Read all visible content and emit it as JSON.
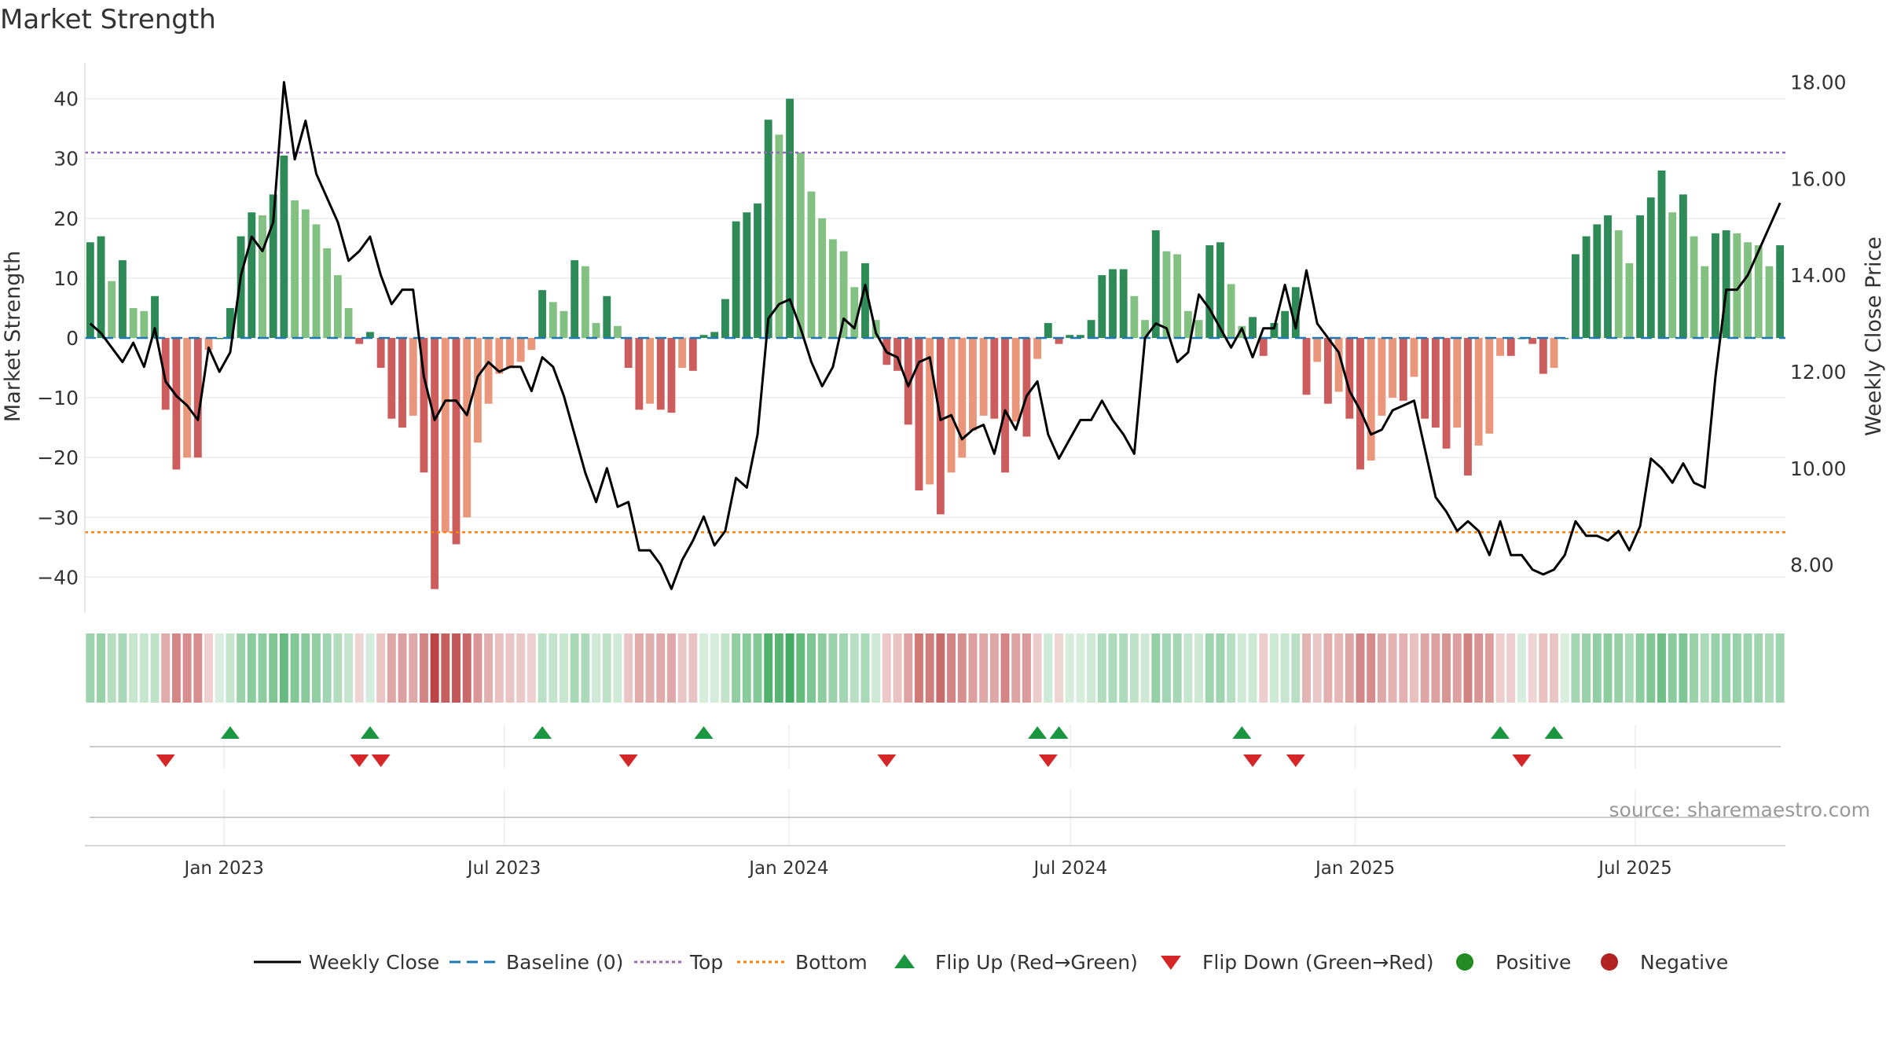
{
  "chart_data": {
    "type": "bar",
    "title": "Market Strength",
    "ylabel": "Market Strength",
    "y2label": "Weekly Close Price",
    "ylim": [
      -46,
      46
    ],
    "y2lim": [
      7.0,
      18.4
    ],
    "yticks": [
      40,
      30,
      20,
      10,
      0,
      -10,
      -20,
      -30,
      -40
    ],
    "ytick_labels": [
      "40",
      "30",
      "20",
      "10",
      "0",
      "−10",
      "−20",
      "−30",
      "−40"
    ],
    "y2ticks": [
      18,
      16,
      14,
      12,
      10,
      8
    ],
    "y2tick_labels": [
      "18.00",
      "16.00",
      "14.00",
      "12.00",
      "10.00",
      "8.00"
    ],
    "x_start": "2022-10-03",
    "x_end": "2025-10-06",
    "week_count": 158,
    "xticks": [
      "2023-01-01",
      "2023-07-01",
      "2024-01-01",
      "2024-07-01",
      "2025-01-01",
      "2025-07-01"
    ],
    "xtick_labels": [
      "Jan 2023",
      "Jul 2023",
      "Jan 2024",
      "Jul 2024",
      "Jan 2025",
      "Jul 2025"
    ],
    "top_threshold": 31,
    "bottom_threshold": -32.5,
    "strength_anchors": [
      [
        0,
        16
      ],
      [
        1,
        17
      ],
      [
        2,
        9.5
      ],
      [
        3,
        13
      ],
      [
        4,
        5
      ],
      [
        5,
        4.5
      ],
      [
        6,
        7
      ],
      [
        7,
        -12
      ],
      [
        8,
        -22
      ],
      [
        9,
        -20
      ],
      [
        10,
        -20
      ],
      [
        11,
        -2
      ],
      [
        12,
        0
      ],
      [
        13,
        5
      ],
      [
        14,
        17
      ],
      [
        15,
        21
      ],
      [
        16,
        20.5
      ],
      [
        17,
        24
      ],
      [
        18,
        30.5
      ],
      [
        19,
        23
      ],
      [
        20,
        21.5
      ],
      [
        21,
        19
      ],
      [
        22,
        15
      ],
      [
        23,
        10.5
      ],
      [
        24,
        5
      ],
      [
        25,
        -1
      ],
      [
        26,
        1
      ],
      [
        27,
        -5
      ],
      [
        28,
        -13.5
      ],
      [
        29,
        -15
      ],
      [
        30,
        -13
      ],
      [
        31,
        -22.5
      ],
      [
        32,
        -42
      ],
      [
        33,
        -32.5
      ],
      [
        34,
        -34.5
      ],
      [
        35,
        -30
      ],
      [
        36,
        -17.5
      ],
      [
        37,
        -11
      ],
      [
        38,
        -6
      ],
      [
        39,
        -5
      ],
      [
        40,
        -4
      ],
      [
        41,
        -2
      ],
      [
        42,
        8
      ],
      [
        43,
        6
      ],
      [
        44,
        4.5
      ],
      [
        45,
        13
      ],
      [
        46,
        12
      ],
      [
        47,
        2.5
      ],
      [
        48,
        7
      ],
      [
        49,
        2
      ],
      [
        50,
        -5
      ],
      [
        51,
        -12
      ],
      [
        52,
        -11
      ],
      [
        53,
        -12
      ],
      [
        54,
        -12.5
      ],
      [
        55,
        -5
      ],
      [
        56,
        -5.5
      ],
      [
        57,
        0.5
      ],
      [
        58,
        1
      ],
      [
        59,
        6.5
      ],
      [
        60,
        19.5
      ],
      [
        61,
        21
      ],
      [
        62,
        22.5
      ],
      [
        63,
        36.5
      ],
      [
        64,
        34
      ],
      [
        65,
        40
      ],
      [
        66,
        31
      ],
      [
        67,
        24.5
      ],
      [
        68,
        20
      ],
      [
        69,
        16.5
      ],
      [
        70,
        14.5
      ],
      [
        71,
        8.5
      ],
      [
        72,
        12.5
      ],
      [
        73,
        3
      ],
      [
        74,
        -4.5
      ],
      [
        75,
        -5.5
      ],
      [
        76,
        -14.5
      ],
      [
        77,
        -25.5
      ],
      [
        78,
        -24.5
      ],
      [
        79,
        -29.5
      ],
      [
        80,
        -22.5
      ],
      [
        81,
        -20
      ],
      [
        82,
        -15.5
      ],
      [
        83,
        -13
      ],
      [
        84,
        -13.5
      ],
      [
        85,
        -22.5
      ],
      [
        86,
        -14
      ],
      [
        87,
        -16.5
      ],
      [
        88,
        -3.5
      ],
      [
        89,
        2.5
      ],
      [
        90,
        -1
      ],
      [
        91,
        0.5
      ],
      [
        92,
        0.5
      ],
      [
        93,
        3
      ],
      [
        94,
        10.5
      ],
      [
        95,
        11.5
      ],
      [
        96,
        11.5
      ],
      [
        97,
        7
      ],
      [
        98,
        3
      ],
      [
        99,
        18
      ],
      [
        100,
        14.5
      ],
      [
        101,
        14
      ],
      [
        102,
        4.5
      ],
      [
        103,
        3
      ],
      [
        104,
        15.5
      ],
      [
        105,
        16
      ],
      [
        106,
        9
      ],
      [
        107,
        2
      ],
      [
        108,
        3.5
      ],
      [
        109,
        -3
      ],
      [
        110,
        2.5
      ],
      [
        111,
        4.5
      ],
      [
        112,
        8.5
      ],
      [
        113,
        -9.5
      ],
      [
        114,
        -4
      ],
      [
        115,
        -11
      ],
      [
        116,
        -9
      ],
      [
        117,
        -13.5
      ],
      [
        118,
        -22
      ],
      [
        119,
        -20.5
      ],
      [
        120,
        -13
      ],
      [
        121,
        -10
      ],
      [
        122,
        -10.5
      ],
      [
        123,
        -6.5
      ],
      [
        124,
        -13.5
      ],
      [
        125,
        -15
      ],
      [
        126,
        -18.5
      ],
      [
        127,
        -15
      ],
      [
        128,
        -23
      ],
      [
        129,
        -18
      ],
      [
        130,
        -16
      ],
      [
        131,
        -3
      ],
      [
        132,
        -3
      ],
      [
        133,
        0
      ],
      [
        134,
        -1
      ],
      [
        135,
        -6
      ],
      [
        136,
        -5
      ],
      [
        137,
        0
      ],
      [
        138,
        14
      ],
      [
        139,
        17
      ],
      [
        140,
        19
      ],
      [
        141,
        20.5
      ],
      [
        142,
        18
      ],
      [
        143,
        12.5
      ],
      [
        144,
        20.5
      ],
      [
        145,
        23.5
      ],
      [
        146,
        28
      ],
      [
        147,
        21
      ],
      [
        148,
        24
      ],
      [
        149,
        17
      ],
      [
        150,
        12
      ],
      [
        151,
        17.5
      ],
      [
        152,
        18
      ],
      [
        153,
        17.5
      ],
      [
        154,
        16
      ],
      [
        155,
        15.5
      ],
      [
        156,
        12
      ],
      [
        157,
        15.5
      ]
    ],
    "price_anchors": [
      [
        0,
        13.0
      ],
      [
        1,
        12.8
      ],
      [
        2,
        12.5
      ],
      [
        3,
        12.2
      ],
      [
        4,
        12.6
      ],
      [
        5,
        12.1
      ],
      [
        6,
        12.9
      ],
      [
        7,
        11.8
      ],
      [
        8,
        11.5
      ],
      [
        9,
        11.3
      ],
      [
        10,
        11.0
      ],
      [
        11,
        12.5
      ],
      [
        12,
        12.0
      ],
      [
        13,
        12.4
      ],
      [
        14,
        14.0
      ],
      [
        15,
        14.8
      ],
      [
        16,
        14.5
      ],
      [
        17,
        15.1
      ],
      [
        18,
        18.0
      ],
      [
        19,
        16.4
      ],
      [
        20,
        17.2
      ],
      [
        21,
        16.1
      ],
      [
        22,
        15.6
      ],
      [
        23,
        15.1
      ],
      [
        24,
        14.3
      ],
      [
        25,
        14.5
      ],
      [
        26,
        14.8
      ],
      [
        27,
        14.0
      ],
      [
        28,
        13.4
      ],
      [
        29,
        13.7
      ],
      [
        30,
        13.7
      ],
      [
        31,
        11.9
      ],
      [
        32,
        11.0
      ],
      [
        33,
        11.4
      ],
      [
        34,
        11.4
      ],
      [
        35,
        11.1
      ],
      [
        36,
        11.9
      ],
      [
        37,
        12.2
      ],
      [
        38,
        12.0
      ],
      [
        39,
        12.1
      ],
      [
        40,
        12.1
      ],
      [
        41,
        11.6
      ],
      [
        42,
        12.3
      ],
      [
        43,
        12.1
      ],
      [
        44,
        11.5
      ],
      [
        45,
        10.7
      ],
      [
        46,
        9.9
      ],
      [
        47,
        9.3
      ],
      [
        48,
        10.0
      ],
      [
        49,
        9.2
      ],
      [
        50,
        9.3
      ],
      [
        51,
        8.3
      ],
      [
        52,
        8.3
      ],
      [
        53,
        8.0
      ],
      [
        54,
        7.5
      ],
      [
        55,
        8.1
      ],
      [
        56,
        8.5
      ],
      [
        57,
        9.0
      ],
      [
        58,
        8.4
      ],
      [
        59,
        8.7
      ],
      [
        60,
        9.8
      ],
      [
        61,
        9.6
      ],
      [
        62,
        10.7
      ],
      [
        63,
        13.1
      ],
      [
        64,
        13.4
      ],
      [
        65,
        13.5
      ],
      [
        66,
        12.9
      ],
      [
        67,
        12.2
      ],
      [
        68,
        11.7
      ],
      [
        69,
        12.1
      ],
      [
        70,
        13.1
      ],
      [
        71,
        12.9
      ],
      [
        72,
        13.8
      ],
      [
        73,
        12.8
      ],
      [
        74,
        12.4
      ],
      [
        75,
        12.3
      ],
      [
        76,
        11.7
      ],
      [
        77,
        12.2
      ],
      [
        78,
        12.3
      ],
      [
        79,
        11.0
      ],
      [
        80,
        11.1
      ],
      [
        81,
        10.6
      ],
      [
        82,
        10.8
      ],
      [
        83,
        10.9
      ],
      [
        84,
        10.3
      ],
      [
        85,
        11.2
      ],
      [
        86,
        10.8
      ],
      [
        87,
        11.5
      ],
      [
        88,
        11.8
      ],
      [
        89,
        10.7
      ],
      [
        90,
        10.2
      ],
      [
        91,
        10.6
      ],
      [
        92,
        11.0
      ],
      [
        93,
        11.0
      ],
      [
        94,
        11.4
      ],
      [
        95,
        11.0
      ],
      [
        96,
        10.7
      ],
      [
        97,
        10.3
      ],
      [
        98,
        12.7
      ],
      [
        99,
        13.0
      ],
      [
        100,
        12.9
      ],
      [
        101,
        12.2
      ],
      [
        102,
        12.4
      ],
      [
        103,
        13.6
      ],
      [
        104,
        13.3
      ],
      [
        105,
        12.9
      ],
      [
        106,
        12.5
      ],
      [
        107,
        12.9
      ],
      [
        108,
        12.3
      ],
      [
        109,
        12.9
      ],
      [
        110,
        12.9
      ],
      [
        111,
        13.8
      ],
      [
        112,
        12.9
      ],
      [
        113,
        14.1
      ],
      [
        114,
        13.0
      ],
      [
        115,
        12.7
      ],
      [
        116,
        12.4
      ],
      [
        117,
        11.6
      ],
      [
        118,
        11.2
      ],
      [
        119,
        10.7
      ],
      [
        120,
        10.8
      ],
      [
        121,
        11.2
      ],
      [
        122,
        11.3
      ],
      [
        123,
        11.4
      ],
      [
        124,
        10.4
      ],
      [
        125,
        9.4
      ],
      [
        126,
        9.1
      ],
      [
        127,
        8.7
      ],
      [
        128,
        8.9
      ],
      [
        129,
        8.7
      ],
      [
        130,
        8.2
      ],
      [
        131,
        8.9
      ],
      [
        132,
        8.2
      ],
      [
        133,
        8.2
      ],
      [
        134,
        7.9
      ],
      [
        135,
        7.8
      ],
      [
        136,
        7.9
      ],
      [
        137,
        8.2
      ],
      [
        138,
        8.9
      ],
      [
        139,
        8.6
      ],
      [
        140,
        8.6
      ],
      [
        141,
        8.5
      ],
      [
        142,
        8.7
      ],
      [
        143,
        8.3
      ],
      [
        144,
        8.8
      ],
      [
        145,
        10.2
      ],
      [
        146,
        10.0
      ],
      [
        147,
        9.7
      ],
      [
        148,
        10.1
      ],
      [
        149,
        9.7
      ],
      [
        150,
        9.6
      ],
      [
        151,
        11.9
      ],
      [
        152,
        13.7
      ],
      [
        153,
        13.7
      ],
      [
        154,
        14.0
      ],
      [
        155,
        14.5
      ],
      [
        156,
        15.0
      ],
      [
        157,
        15.5
      ]
    ],
    "flip_up_weeks": [
      13,
      26,
      42,
      57,
      88,
      90,
      107,
      131,
      136
    ],
    "flip_down_weeks": [
      7,
      25,
      27,
      50,
      74,
      89,
      108,
      112,
      133
    ],
    "source": "source: sharemaestro.com",
    "legend": [
      "Weekly Close",
      "Baseline (0)",
      "Top",
      "Bottom",
      "Flip Up (Red→Green)",
      "Flip Down (Green→Red)",
      "Positive",
      "Negative"
    ],
    "legend_position": "bottom-center",
    "colors": {
      "pos_strong": "#2e8b57",
      "pos_weak": "#82c182",
      "neg_strong": "#cd5c5c",
      "neg_weak": "#e9967a",
      "price_line": "#000000",
      "baseline": "#1f77b4",
      "top": "#9467bd",
      "bottom": "#ff7f0e",
      "flip_up": "#1a9641",
      "flip_down": "#d62728",
      "positive_dot": "#228b22",
      "negative_dot": "#b22222",
      "heat_pos": "#3aa75a",
      "heat_neg": "#b83a3a"
    }
  }
}
